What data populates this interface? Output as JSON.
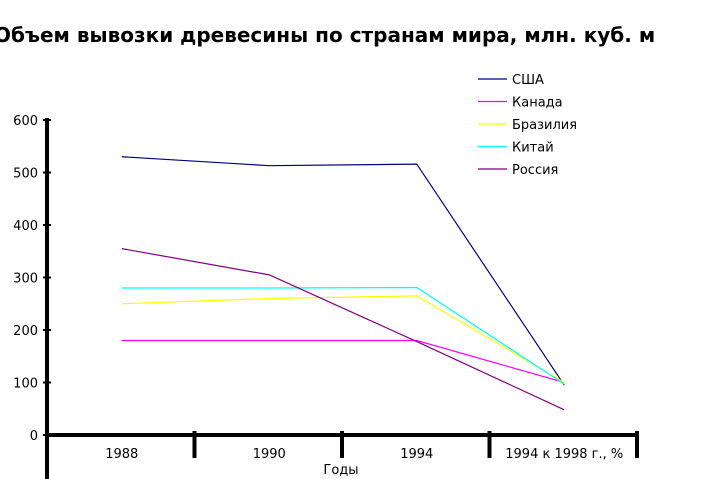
{
  "chart_data": {
    "type": "line",
    "title": "Объем вывозки древесины по странам мира, млн. куб. м",
    "xlabel": "Годы",
    "ylabel": "",
    "categories": [
      "1988",
      "1990",
      "1994",
      "1994 к 1998 г., %"
    ],
    "ylim": [
      0,
      600
    ],
    "yticks": [
      "0",
      "100",
      "200",
      "300",
      "400",
      "500",
      "600"
    ],
    "grid": false,
    "legend_position": "top-right",
    "series": [
      {
        "name": "США",
        "color": "#000080",
        "values": [
          530,
          513,
          516,
          95
        ]
      },
      {
        "name": "Канада",
        "color": "#ff00ff",
        "values": [
          180,
          180,
          180,
          100
        ]
      },
      {
        "name": "Бразилия",
        "color": "#ffff00",
        "values": [
          250,
          260,
          265,
          100
        ]
      },
      {
        "name": "Китай",
        "color": "#00ffff",
        "values": [
          280,
          280,
          281,
          97
        ]
      },
      {
        "name": "Россия",
        "color": "#800080",
        "values": [
          355,
          305,
          178,
          48
        ]
      }
    ]
  }
}
